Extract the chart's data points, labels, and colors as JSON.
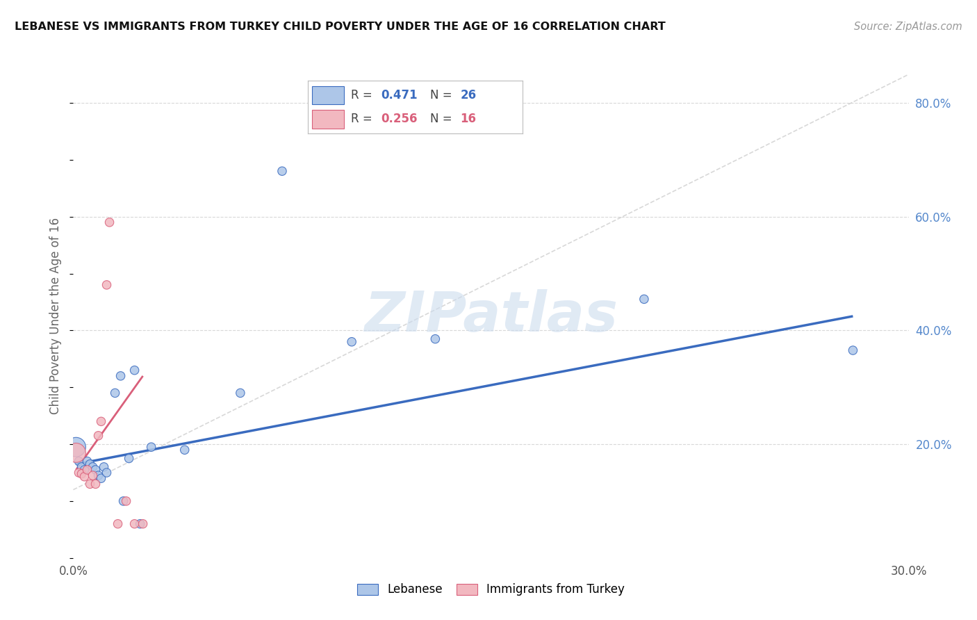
{
  "title": "LEBANESE VS IMMIGRANTS FROM TURKEY CHILD POVERTY UNDER THE AGE OF 16 CORRELATION CHART",
  "source": "Source: ZipAtlas.com",
  "ylabel": "Child Poverty Under the Age of 16",
  "xlim": [
    0.0,
    0.3
  ],
  "ylim": [
    0.0,
    0.85
  ],
  "legend_label_blue": "Lebanese",
  "legend_label_pink": "Immigrants from Turkey",
  "blue_color": "#adc6e8",
  "pink_color": "#f2b8c0",
  "blue_line_color": "#3a6bbf",
  "pink_line_color": "#d95f7a",
  "dashed_line_color": "#c8c8c8",
  "watermark": "ZIPatlas",
  "blue_r": "0.471",
  "blue_n": "26",
  "pink_r": "0.256",
  "pink_n": "16",
  "blue_scatter": [
    [
      0.001,
      0.195
    ],
    [
      0.002,
      0.17
    ],
    [
      0.003,
      0.16
    ],
    [
      0.004,
      0.155
    ],
    [
      0.005,
      0.17
    ],
    [
      0.006,
      0.165
    ],
    [
      0.007,
      0.16
    ],
    [
      0.008,
      0.155
    ],
    [
      0.009,
      0.145
    ],
    [
      0.01,
      0.14
    ],
    [
      0.011,
      0.16
    ],
    [
      0.012,
      0.15
    ],
    [
      0.015,
      0.29
    ],
    [
      0.017,
      0.32
    ],
    [
      0.018,
      0.1
    ],
    [
      0.02,
      0.175
    ],
    [
      0.022,
      0.33
    ],
    [
      0.024,
      0.06
    ],
    [
      0.028,
      0.195
    ],
    [
      0.04,
      0.19
    ],
    [
      0.06,
      0.29
    ],
    [
      0.075,
      0.68
    ],
    [
      0.1,
      0.38
    ],
    [
      0.13,
      0.385
    ],
    [
      0.205,
      0.455
    ],
    [
      0.28,
      0.365
    ]
  ],
  "pink_scatter": [
    [
      0.001,
      0.185
    ],
    [
      0.002,
      0.15
    ],
    [
      0.003,
      0.148
    ],
    [
      0.004,
      0.143
    ],
    [
      0.005,
      0.155
    ],
    [
      0.006,
      0.13
    ],
    [
      0.007,
      0.145
    ],
    [
      0.008,
      0.13
    ],
    [
      0.009,
      0.215
    ],
    [
      0.01,
      0.24
    ],
    [
      0.012,
      0.48
    ],
    [
      0.013,
      0.59
    ],
    [
      0.016,
      0.06
    ],
    [
      0.019,
      0.1
    ],
    [
      0.022,
      0.06
    ],
    [
      0.025,
      0.06
    ]
  ],
  "blue_scatter_sizes": [
    400,
    80,
    80,
    80,
    80,
    80,
    80,
    80,
    80,
    80,
    80,
    80,
    80,
    80,
    80,
    80,
    80,
    80,
    80,
    80,
    80,
    80,
    80,
    80,
    80,
    80
  ],
  "pink_scatter_sizes": [
    400,
    80,
    80,
    80,
    80,
    80,
    80,
    80,
    80,
    80,
    80,
    80,
    80,
    80,
    80,
    80
  ],
  "blue_line_x": [
    0.001,
    0.28
  ],
  "blue_line_y": [
    0.165,
    0.425
  ],
  "pink_line_x": [
    0.001,
    0.025
  ],
  "pink_line_y": [
    0.155,
    0.32
  ],
  "dashed_line_x": [
    0.0,
    0.3
  ],
  "dashed_line_y": [
    0.12,
    0.85
  ]
}
